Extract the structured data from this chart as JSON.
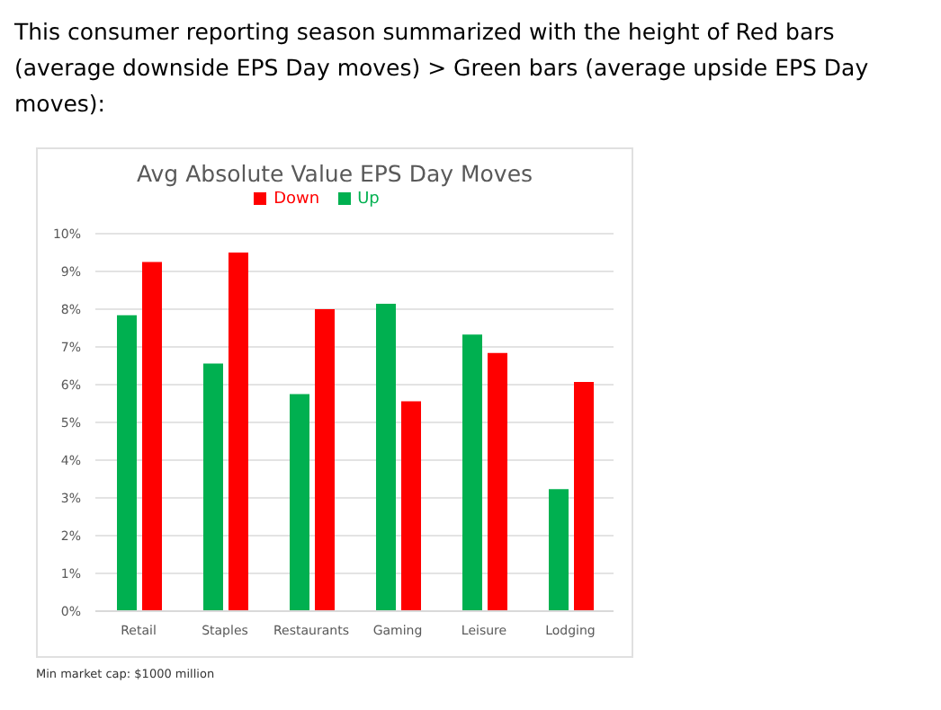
{
  "chart_data": {
    "type": "bar",
    "title": "Avg Absolute Value EPS Day Moves",
    "annotations": [
      "This consumer reporting season summarized with the height of Red bars (average downside EPS Day moves) > Green bars (average upside EPS Day moves):",
      "Min market cap: $1000 million"
    ],
    "categories": [
      "Retail",
      "Staples",
      "Restaurants",
      "Gaming",
      "Leisure",
      "Lodging"
    ],
    "series": [
      {
        "name": "Up",
        "color": "#00b050",
        "values": [
          7.84,
          6.56,
          5.75,
          8.14,
          7.33,
          3.23
        ]
      },
      {
        "name": "Down",
        "color": "#ff0000",
        "values": [
          9.25,
          9.5,
          8.0,
          5.56,
          6.84,
          6.07
        ]
      }
    ],
    "ylim": [
      0,
      10
    ],
    "yticks": [
      {
        "value": 0,
        "label": "0%"
      },
      {
        "value": 1,
        "label": "1%"
      },
      {
        "value": 2,
        "label": "2%"
      },
      {
        "value": 3,
        "label": "3%"
      },
      {
        "value": 4,
        "label": "4%"
      },
      {
        "value": 5,
        "label": "5%"
      },
      {
        "value": 6,
        "label": "6%"
      },
      {
        "value": 7,
        "label": "7%"
      },
      {
        "value": 8,
        "label": "8%"
      },
      {
        "value": 9,
        "label": "9%"
      },
      {
        "value": 10,
        "label": "10%"
      }
    ],
    "grid": "y",
    "legend": "top"
  }
}
